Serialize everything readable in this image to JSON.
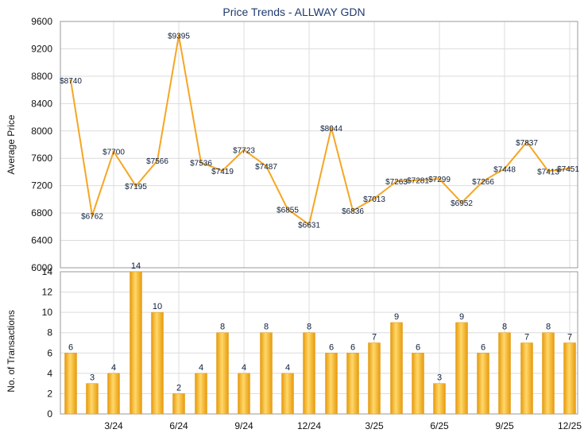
{
  "chart_data": [
    {
      "type": "line",
      "title": "Price Trends - ALLWAY GDN",
      "xlabel": "",
      "ylabel": "Average Price",
      "ylim": [
        6000,
        9600
      ],
      "yticks": [
        "6000",
        "6400",
        "6800",
        "7200",
        "7600",
        "8000",
        "8400",
        "8800",
        "9200",
        "9600"
      ],
      "grid": true,
      "color": "#f5a623",
      "values": [
        8740,
        6762,
        7700,
        7195,
        7566,
        9395,
        7536,
        7419,
        7723,
        7487,
        6855,
        6631,
        8044,
        6836,
        7013,
        7263,
        7281,
        7299,
        6952,
        7266,
        7448,
        7837,
        7413,
        7451
      ],
      "labels": [
        "$8740",
        "$6762",
        "$7700",
        "$7195",
        "$7566",
        "$9395",
        "$7536",
        "$7419",
        "$7723",
        "$7487",
        "$6855",
        "$6631",
        "$8044",
        "$6836",
        "$7013",
        "$7263",
        "$7281",
        "$7299",
        "$6952",
        "$7266",
        "$7448",
        "$7837",
        "$7413",
        "$7451"
      ]
    },
    {
      "type": "bar",
      "title": "",
      "xlabel": "",
      "ylabel": "No. of Transactions",
      "ylim": [
        0,
        14
      ],
      "yticks": [
        "0",
        "2",
        "4",
        "6",
        "8",
        "10",
        "12",
        "14"
      ],
      "xticks": [
        "3/24",
        "6/24",
        "9/24",
        "12/24",
        "3/25",
        "6/25",
        "9/25",
        "12/25"
      ],
      "grid": true,
      "color": "#f5b21c",
      "values": [
        6,
        3,
        4,
        14,
        10,
        2,
        4,
        8,
        4,
        8,
        4,
        8,
        6,
        6,
        7,
        9,
        6,
        3,
        9,
        6,
        8,
        7,
        8,
        7
      ]
    }
  ]
}
